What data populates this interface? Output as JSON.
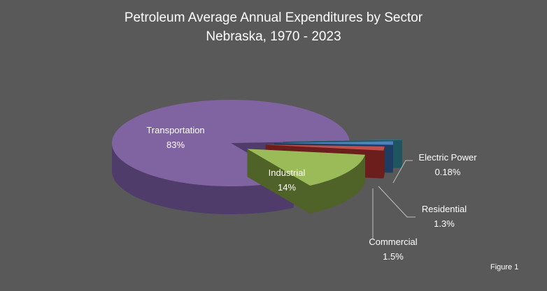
{
  "chart_data": {
    "type": "pie",
    "style": "3d-exploded",
    "title": "Petroleum Average Annual Expenditures by Sector",
    "subtitle": "Nebraska, 1970 - 2023",
    "slices": [
      {
        "label": "Electric Power",
        "value": 0.18,
        "display": "0.18%",
        "color": "#31859c",
        "side": "#1e5561"
      },
      {
        "label": "Residential",
        "value": 1.3,
        "display": "1.3%",
        "color": "#4f81bd",
        "side": "#1f3d63"
      },
      {
        "label": "Commercial",
        "value": 1.5,
        "display": "1.5%",
        "color": "#c0504d",
        "side": "#6b1e1c"
      },
      {
        "label": "Industrial",
        "value": 14,
        "display": "14%",
        "color": "#9bbb59",
        "side": "#4f6228"
      },
      {
        "label": "Transportation",
        "value": 83,
        "display": "83%",
        "color": "#8064a2",
        "side": "#4f3c6b"
      }
    ],
    "background": "#595959"
  },
  "figure_label": "Figure 1"
}
